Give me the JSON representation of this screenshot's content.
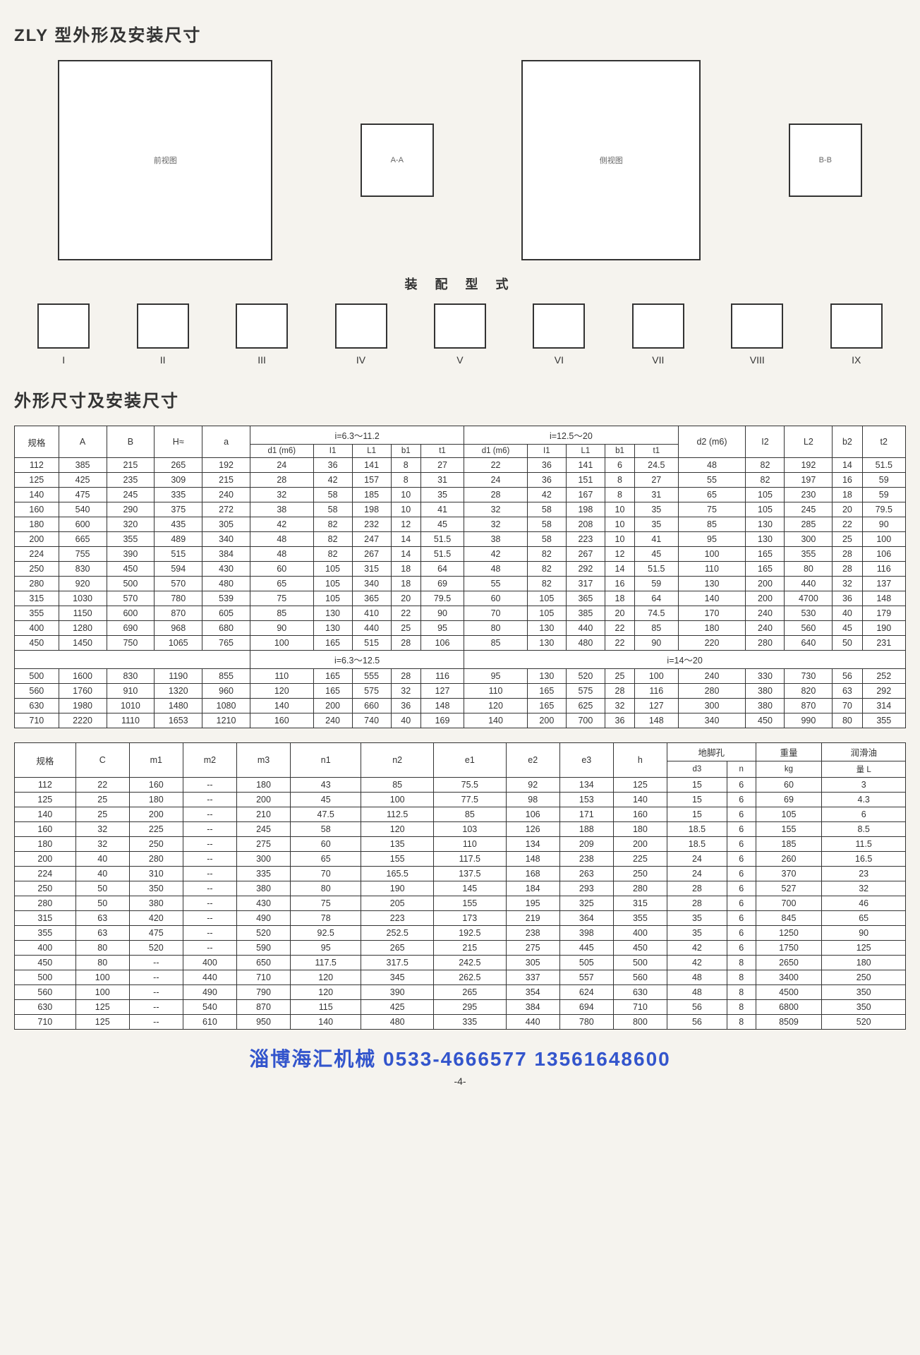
{
  "titles": {
    "main": "ZLY 型外形及安装尺寸",
    "assembly": "装 配 型 式",
    "table": "外形尺寸及安装尺寸"
  },
  "diagrams": {
    "front": "前视图",
    "sectAA": "A-A",
    "side": "侧视图",
    "sectBB": "B-B",
    "assembly_labels": [
      "I",
      "II",
      "III",
      "IV",
      "V",
      "VI",
      "VII",
      "VIII",
      "IX"
    ]
  },
  "table1": {
    "group_headers": [
      "规格",
      "A",
      "B",
      "H≈",
      "a",
      "i=6.3～11.2",
      "i=12.5～20",
      "d2 (m6)",
      "I2",
      "L2",
      "b2",
      "t2"
    ],
    "sub_headers_a": [
      "d1 (m6)",
      "I1",
      "L1",
      "b1",
      "t1"
    ],
    "sub_headers_b": [
      "d1 (m6)",
      "I1",
      "L1",
      "b1",
      "t1"
    ],
    "midgroup_a": "i=6.3～12.5",
    "midgroup_b": "i=14～20",
    "rows": [
      [
        "112",
        "385",
        "215",
        "265",
        "192",
        "24",
        "36",
        "141",
        "8",
        "27",
        "22",
        "36",
        "141",
        "6",
        "24.5",
        "48",
        "82",
        "192",
        "14",
        "51.5"
      ],
      [
        "125",
        "425",
        "235",
        "309",
        "215",
        "28",
        "42",
        "157",
        "8",
        "31",
        "24",
        "36",
        "151",
        "8",
        "27",
        "55",
        "82",
        "197",
        "16",
        "59"
      ],
      [
        "140",
        "475",
        "245",
        "335",
        "240",
        "32",
        "58",
        "185",
        "10",
        "35",
        "28",
        "42",
        "167",
        "8",
        "31",
        "65",
        "105",
        "230",
        "18",
        "59"
      ],
      [
        "160",
        "540",
        "290",
        "375",
        "272",
        "38",
        "58",
        "198",
        "10",
        "41",
        "32",
        "58",
        "198",
        "10",
        "35",
        "75",
        "105",
        "245",
        "20",
        "79.5"
      ],
      [
        "180",
        "600",
        "320",
        "435",
        "305",
        "42",
        "82",
        "232",
        "12",
        "45",
        "32",
        "58",
        "208",
        "10",
        "35",
        "85",
        "130",
        "285",
        "22",
        "90"
      ],
      [
        "200",
        "665",
        "355",
        "489",
        "340",
        "48",
        "82",
        "247",
        "14",
        "51.5",
        "38",
        "58",
        "223",
        "10",
        "41",
        "95",
        "130",
        "300",
        "25",
        "100"
      ],
      [
        "224",
        "755",
        "390",
        "515",
        "384",
        "48",
        "82",
        "267",
        "14",
        "51.5",
        "42",
        "82",
        "267",
        "12",
        "45",
        "100",
        "165",
        "355",
        "28",
        "106"
      ],
      [
        "250",
        "830",
        "450",
        "594",
        "430",
        "60",
        "105",
        "315",
        "18",
        "64",
        "48",
        "82",
        "292",
        "14",
        "51.5",
        "110",
        "165",
        "80",
        "28",
        "116"
      ],
      [
        "280",
        "920",
        "500",
        "570",
        "480",
        "65",
        "105",
        "340",
        "18",
        "69",
        "55",
        "82",
        "317",
        "16",
        "59",
        "130",
        "200",
        "440",
        "32",
        "137"
      ],
      [
        "315",
        "1030",
        "570",
        "780",
        "539",
        "75",
        "105",
        "365",
        "20",
        "79.5",
        "60",
        "105",
        "365",
        "18",
        "64",
        "140",
        "200",
        "4700",
        "36",
        "148"
      ],
      [
        "355",
        "1150",
        "600",
        "870",
        "605",
        "85",
        "130",
        "410",
        "22",
        "90",
        "70",
        "105",
        "385",
        "20",
        "74.5",
        "170",
        "240",
        "530",
        "40",
        "179"
      ],
      [
        "400",
        "1280",
        "690",
        "968",
        "680",
        "90",
        "130",
        "440",
        "25",
        "95",
        "80",
        "130",
        "440",
        "22",
        "85",
        "180",
        "240",
        "560",
        "45",
        "190"
      ],
      [
        "450",
        "1450",
        "750",
        "1065",
        "765",
        "100",
        "165",
        "515",
        "28",
        "106",
        "85",
        "130",
        "480",
        "22",
        "90",
        "220",
        "280",
        "640",
        "50",
        "231"
      ]
    ],
    "rows2": [
      [
        "500",
        "1600",
        "830",
        "1190",
        "855",
        "110",
        "165",
        "555",
        "28",
        "116",
        "95",
        "130",
        "520",
        "25",
        "100",
        "240",
        "330",
        "730",
        "56",
        "252"
      ],
      [
        "560",
        "1760",
        "910",
        "1320",
        "960",
        "120",
        "165",
        "575",
        "32",
        "127",
        "110",
        "165",
        "575",
        "28",
        "116",
        "280",
        "380",
        "820",
        "63",
        "292"
      ],
      [
        "630",
        "1980",
        "1010",
        "1480",
        "1080",
        "140",
        "200",
        "660",
        "36",
        "148",
        "120",
        "165",
        "625",
        "32",
        "127",
        "300",
        "380",
        "870",
        "70",
        "314"
      ],
      [
        "710",
        "2220",
        "1110",
        "1653",
        "1210",
        "160",
        "240",
        "740",
        "40",
        "169",
        "140",
        "200",
        "700",
        "36",
        "148",
        "340",
        "450",
        "990",
        "80",
        "355"
      ]
    ]
  },
  "table2": {
    "headers": [
      "规格",
      "C",
      "m1",
      "m2",
      "m3",
      "n1",
      "n2",
      "e1",
      "e2",
      "e3",
      "h",
      "地脚孔",
      "重量",
      "润滑油"
    ],
    "sub_headers": [
      "d3",
      "n",
      "kg",
      "量 L"
    ],
    "rows": [
      [
        "112",
        "22",
        "160",
        "--",
        "180",
        "43",
        "85",
        "75.5",
        "92",
        "134",
        "125",
        "15",
        "6",
        "60",
        "3"
      ],
      [
        "125",
        "25",
        "180",
        "--",
        "200",
        "45",
        "100",
        "77.5",
        "98",
        "153",
        "140",
        "15",
        "6",
        "69",
        "4.3"
      ],
      [
        "140",
        "25",
        "200",
        "--",
        "210",
        "47.5",
        "112.5",
        "85",
        "106",
        "171",
        "160",
        "15",
        "6",
        "105",
        "6"
      ],
      [
        "160",
        "32",
        "225",
        "--",
        "245",
        "58",
        "120",
        "103",
        "126",
        "188",
        "180",
        "18.5",
        "6",
        "155",
        "8.5"
      ],
      [
        "180",
        "32",
        "250",
        "--",
        "275",
        "60",
        "135",
        "110",
        "134",
        "209",
        "200",
        "18.5",
        "6",
        "185",
        "11.5"
      ],
      [
        "200",
        "40",
        "280",
        "--",
        "300",
        "65",
        "155",
        "117.5",
        "148",
        "238",
        "225",
        "24",
        "6",
        "260",
        "16.5"
      ],
      [
        "224",
        "40",
        "310",
        "--",
        "335",
        "70",
        "165.5",
        "137.5",
        "168",
        "263",
        "250",
        "24",
        "6",
        "370",
        "23"
      ],
      [
        "250",
        "50",
        "350",
        "--",
        "380",
        "80",
        "190",
        "145",
        "184",
        "293",
        "280",
        "28",
        "6",
        "527",
        "32"
      ],
      [
        "280",
        "50",
        "380",
        "--",
        "430",
        "75",
        "205",
        "155",
        "195",
        "325",
        "315",
        "28",
        "6",
        "700",
        "46"
      ],
      [
        "315",
        "63",
        "420",
        "--",
        "490",
        "78",
        "223",
        "173",
        "219",
        "364",
        "355",
        "35",
        "6",
        "845",
        "65"
      ],
      [
        "355",
        "63",
        "475",
        "--",
        "520",
        "92.5",
        "252.5",
        "192.5",
        "238",
        "398",
        "400",
        "35",
        "6",
        "1250",
        "90"
      ],
      [
        "400",
        "80",
        "520",
        "--",
        "590",
        "95",
        "265",
        "215",
        "275",
        "445",
        "450",
        "42",
        "6",
        "1750",
        "125"
      ],
      [
        "450",
        "80",
        "--",
        "400",
        "650",
        "117.5",
        "317.5",
        "242.5",
        "305",
        "505",
        "500",
        "42",
        "8",
        "2650",
        "180"
      ],
      [
        "500",
        "100",
        "--",
        "440",
        "710",
        "120",
        "345",
        "262.5",
        "337",
        "557",
        "560",
        "48",
        "8",
        "3400",
        "250"
      ],
      [
        "560",
        "100",
        "--",
        "490",
        "790",
        "120",
        "390",
        "265",
        "354",
        "624",
        "630",
        "48",
        "8",
        "4500",
        "350"
      ],
      [
        "630",
        "125",
        "--",
        "540",
        "870",
        "115",
        "425",
        "295",
        "384",
        "694",
        "710",
        "56",
        "8",
        "6800",
        "350"
      ],
      [
        "710",
        "125",
        "--",
        "610",
        "950",
        "140",
        "480",
        "335",
        "440",
        "780",
        "800",
        "56",
        "8",
        "8509",
        "520"
      ]
    ]
  },
  "footer": {
    "company": "淄博海汇机械 0533-4666577 13561648600",
    "pageno": "-4-"
  },
  "style": {
    "bg": "#f5f3ee",
    "footer_color": "#3355cc"
  }
}
